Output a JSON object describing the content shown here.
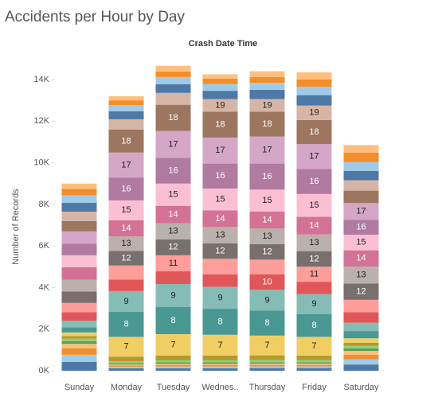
{
  "chart_data": {
    "type": "stacked-bar",
    "title": "Accidents per Hour by Day",
    "subtitle": "Crash Date Time",
    "y_label": "Number of Records",
    "categories": [
      "Sunday",
      "Monday",
      "Tuesday",
      "Wednes..",
      "Thursday",
      "Friday",
      "Saturday"
    ],
    "ylim": [
      0,
      15000
    ],
    "yticks": [
      {
        "value": 0,
        "label": "0K"
      },
      {
        "value": 2000,
        "label": "2K"
      },
      {
        "value": 4000,
        "label": "4K"
      },
      {
        "value": 6000,
        "label": "6K"
      },
      {
        "value": 8000,
        "label": "8K"
      },
      {
        "value": 10000,
        "label": "10K"
      },
      {
        "value": 12000,
        "label": "12K"
      },
      {
        "value": 14000,
        "label": "14K"
      }
    ],
    "grid": false,
    "series": [
      {
        "color": "#4e79a7",
        "values": [
          420,
          120,
          120,
          120,
          130,
          130,
          300
        ]
      },
      {
        "color": "#a0cbe8",
        "values": [
          350,
          70,
          80,
          80,
          80,
          80,
          250
        ]
      },
      {
        "color": "#f28e2b",
        "values": [
          300,
          60,
          70,
          70,
          70,
          70,
          220
        ]
      },
      {
        "color": "#ffbe7d",
        "values": [
          220,
          50,
          60,
          60,
          60,
          60,
          180
        ]
      },
      {
        "color": "#59a14f",
        "values": [
          130,
          60,
          70,
          70,
          70,
          70,
          120
        ]
      },
      {
        "color": "#8cd17d",
        "values": [
          120,
          100,
          100,
          100,
          100,
          100,
          120
        ]
      },
      {
        "color": "#b6992d",
        "values": [
          130,
          220,
          230,
          230,
          230,
          220,
          150
        ]
      },
      {
        "color": "#f1ce63",
        "values": [
          170,
          950,
          1030,
          1000,
          950,
          900,
          220
        ],
        "labels": [
          null,
          "7",
          "7",
          "7",
          "7",
          "7",
          null
        ]
      },
      {
        "color": "#499894",
        "values": [
          250,
          1200,
          1300,
          1250,
          1200,
          1100,
          350
        ],
        "labels": [
          null,
          "8",
          "8",
          "8",
          "8",
          "8",
          null
        ]
      },
      {
        "color": "#86bcb6",
        "values": [
          320,
          1000,
          1110,
          1050,
          1000,
          950,
          400
        ],
        "labels": [
          null,
          "9",
          "9",
          "9",
          "9",
          "9",
          null
        ]
      },
      {
        "color": "#e15759",
        "values": [
          400,
          550,
          610,
          600,
          750,
          600,
          500
        ],
        "labels": [
          null,
          null,
          null,
          null,
          "10",
          null,
          null
        ]
      },
      {
        "color": "#ff9d9a",
        "values": [
          450,
          680,
          770,
          750,
          700,
          720,
          600
        ],
        "labels": [
          null,
          null,
          "11",
          null,
          null,
          "11",
          null
        ]
      },
      {
        "color": "#79706e",
        "values": [
          550,
          700,
          770,
          750,
          750,
          750,
          780
        ],
        "labels": [
          null,
          "12",
          "12",
          "12",
          "12",
          "12",
          "12"
        ]
      },
      {
        "color": "#bab0ac",
        "values": [
          570,
          700,
          770,
          780,
          750,
          800,
          820
        ],
        "labels": [
          null,
          "13",
          "13",
          "13",
          "13",
          "13",
          "13"
        ]
      },
      {
        "color": "#d37295",
        "values": [
          600,
          780,
          840,
          800,
          820,
          850,
          780
        ],
        "labels": [
          null,
          "14",
          "14",
          "14",
          "14",
          "14",
          "14"
        ]
      },
      {
        "color": "#fabfd2",
        "values": [
          570,
          950,
          1070,
          1050,
          1050,
          1100,
          750
        ],
        "labels": [
          null,
          "15",
          "15",
          "15",
          "15",
          "15",
          "15"
        ]
      },
      {
        "color": "#b07aa1",
        "values": [
          550,
          1100,
          1230,
          1200,
          1250,
          1200,
          720
        ],
        "labels": [
          null,
          "16",
          "16",
          "16",
          "16",
          "16",
          "16"
        ]
      },
      {
        "color": "#d4a6c8",
        "values": [
          600,
          1200,
          1300,
          1250,
          1300,
          1200,
          800
        ],
        "labels": [
          null,
          "17",
          "17",
          "17",
          "17",
          "17",
          "17"
        ]
      },
      {
        "color": "#9d7660",
        "values": [
          500,
          1100,
          1260,
          1250,
          1200,
          1150,
          600
        ],
        "labels": [
          null,
          "18",
          "18",
          "18",
          "18",
          "18",
          null
        ]
      },
      {
        "color": "#d7b5a6",
        "values": [
          450,
          500,
          570,
          600,
          600,
          700,
          500
        ],
        "labels": [
          null,
          null,
          null,
          "19",
          "19",
          "19",
          null
        ]
      },
      {
        "color": "#4e79a7",
        "values": [
          420,
          380,
          420,
          400,
          450,
          500,
          450
        ]
      },
      {
        "color": "#a0cbe8",
        "values": [
          370,
          300,
          340,
          330,
          330,
          400,
          420
        ]
      },
      {
        "color": "#f28e2b",
        "values": [
          300,
          230,
          270,
          250,
          280,
          350,
          450
        ]
      },
      {
        "color": "#ffbe7d",
        "values": [
          260,
          200,
          270,
          210,
          280,
          350,
          370
        ]
      }
    ]
  }
}
